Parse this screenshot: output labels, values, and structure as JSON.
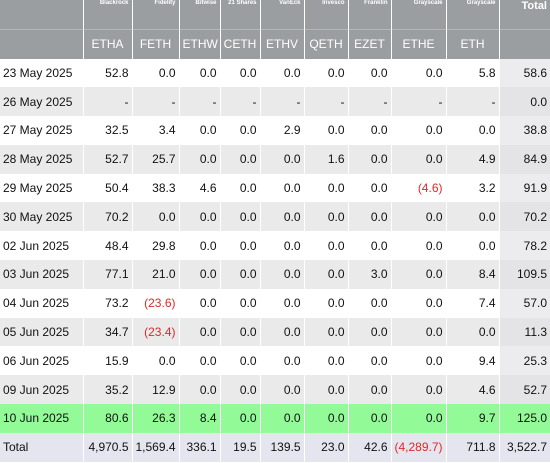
{
  "table": {
    "issuers": [
      "Blackrock",
      "Fidelity",
      "Bitwise",
      "21 Shares",
      "VanEck",
      "Invesco",
      "Franklin",
      "Grayscale",
      "Grayscale"
    ],
    "total_label": "Total",
    "tickers": [
      "ETHA",
      "FETH",
      "ETHW",
      "CETH",
      "ETHV",
      "QETH",
      "EZET",
      "ETHE",
      "ETH"
    ],
    "rows": [
      {
        "date": "23 May 2025",
        "values": [
          "52.8",
          "0.0",
          "0.0",
          "0.0",
          "0.0",
          "0.0",
          "0.0",
          "0.0",
          "5.8"
        ],
        "total": "58.6"
      },
      {
        "date": "26 May 2025",
        "values": [
          "-",
          "-",
          "-",
          "-",
          "-",
          "-",
          "-",
          "-",
          "-"
        ],
        "total": "0.0"
      },
      {
        "date": "27 May 2025",
        "values": [
          "32.5",
          "3.4",
          "0.0",
          "0.0",
          "2.9",
          "0.0",
          "0.0",
          "0.0",
          "0.0"
        ],
        "total": "38.8"
      },
      {
        "date": "28 May 2025",
        "values": [
          "52.7",
          "25.7",
          "0.0",
          "0.0",
          "0.0",
          "1.6",
          "0.0",
          "0.0",
          "4.9"
        ],
        "total": "84.9"
      },
      {
        "date": "29 May 2025",
        "values": [
          "50.4",
          "38.3",
          "4.6",
          "0.0",
          "0.0",
          "0.0",
          "0.0",
          "(4.6)",
          "3.2"
        ],
        "total": "91.9"
      },
      {
        "date": "30 May 2025",
        "values": [
          "70.2",
          "0.0",
          "0.0",
          "0.0",
          "0.0",
          "0.0",
          "0.0",
          "0.0",
          "0.0"
        ],
        "total": "70.2"
      },
      {
        "date": "02 Jun 2025",
        "values": [
          "48.4",
          "29.8",
          "0.0",
          "0.0",
          "0.0",
          "0.0",
          "0.0",
          "0.0",
          "0.0"
        ],
        "total": "78.2"
      },
      {
        "date": "03 Jun 2025",
        "values": [
          "77.1",
          "21.0",
          "0.0",
          "0.0",
          "0.0",
          "0.0",
          "3.0",
          "0.0",
          "8.4"
        ],
        "total": "109.5"
      },
      {
        "date": "04 Jun 2025",
        "values": [
          "73.2",
          "(23.6)",
          "0.0",
          "0.0",
          "0.0",
          "0.0",
          "0.0",
          "0.0",
          "7.4"
        ],
        "total": "57.0"
      },
      {
        "date": "05 Jun 2025",
        "values": [
          "34.7",
          "(23.4)",
          "0.0",
          "0.0",
          "0.0",
          "0.0",
          "0.0",
          "0.0",
          "0.0"
        ],
        "total": "11.3"
      },
      {
        "date": "06 Jun 2025",
        "values": [
          "15.9",
          "0.0",
          "0.0",
          "0.0",
          "0.0",
          "0.0",
          "0.0",
          "0.0",
          "9.4"
        ],
        "total": "25.3"
      },
      {
        "date": "09 Jun 2025",
        "values": [
          "35.2",
          "12.9",
          "0.0",
          "0.0",
          "0.0",
          "0.0",
          "0.0",
          "0.0",
          "4.6"
        ],
        "total": "52.7"
      },
      {
        "date": "10 Jun 2025",
        "values": [
          "80.6",
          "26.3",
          "8.4",
          "0.0",
          "0.0",
          "0.0",
          "0.0",
          "0.0",
          "9.7"
        ],
        "total": "125.0",
        "highlight": true
      }
    ],
    "totals_row": {
      "label": "Total",
      "values": [
        "4,970.5",
        "1,569.4",
        "336.1",
        "19.5",
        "139.5",
        "23.0",
        "42.6",
        "(4,289.7)",
        "711.8"
      ],
      "total": "3,522.7"
    },
    "colors": {
      "header_bg": "#9b9ea0",
      "highlight_bg": "#93fa98",
      "negative_text": "#e02828",
      "stripe_bg": "#eaeaea",
      "total_row_bg": "#e5e5ef"
    }
  }
}
